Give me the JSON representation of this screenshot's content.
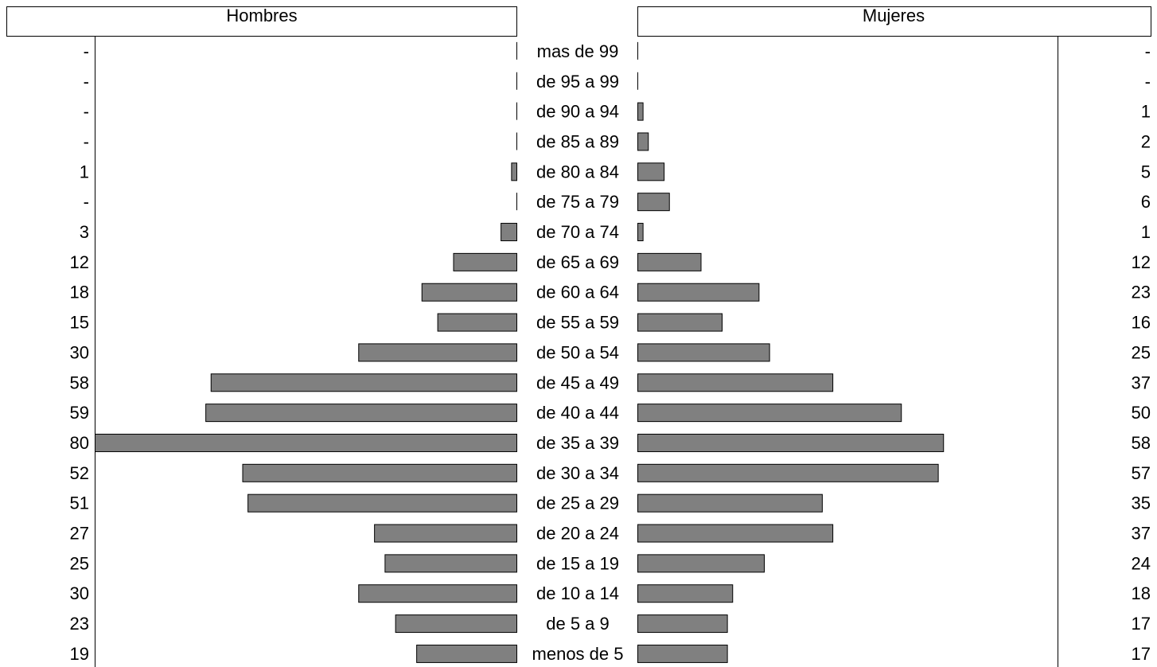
{
  "headers": {
    "left": "Hombres",
    "right": "Mujeres"
  },
  "colors": {
    "bar_fill": "#808080",
    "bar_stroke": "#000000",
    "line": "#000000",
    "background": "#ffffff"
  },
  "chart_data": {
    "type": "bar",
    "orientation": "horizontal-population-pyramid",
    "categories": [
      "mas de 99",
      "de 95 a 99",
      "de 90 a 94",
      "de 85 a 89",
      "de 80 a 84",
      "de 75 a 79",
      "de 70 a 74",
      "de 65 a 69",
      "de 60 a 64",
      "de 55 a 59",
      "de 50 a 54",
      "de 45 a 49",
      "de 40 a 44",
      "de 35 a 39",
      "de 30 a 34",
      "de 25 a 29",
      "de 20 a 24",
      "de 15 a 19",
      "de 10 a 14",
      "de 5 a 9",
      "menos de 5"
    ],
    "series": [
      {
        "name": "Hombres",
        "values": [
          0,
          0,
          0,
          0,
          1,
          0,
          3,
          12,
          18,
          15,
          30,
          58,
          59,
          80,
          52,
          51,
          27,
          25,
          30,
          23,
          19
        ],
        "labels": [
          "-",
          "-",
          "-",
          "-",
          "1",
          "-",
          "3",
          "12",
          "18",
          "15",
          "30",
          "58",
          "59",
          "80",
          "52",
          "51",
          "27",
          "25",
          "30",
          "23",
          "19"
        ]
      },
      {
        "name": "Mujeres",
        "values": [
          0,
          0,
          1,
          2,
          5,
          6,
          1,
          12,
          23,
          16,
          25,
          37,
          50,
          58,
          57,
          35,
          37,
          24,
          18,
          17,
          17
        ],
        "labels": [
          "-",
          "-",
          "1",
          "2",
          "5",
          "6",
          "1",
          "12",
          "23",
          "16",
          "25",
          "37",
          "50",
          "58",
          "57",
          "35",
          "37",
          "24",
          "18",
          "17",
          "17"
        ]
      }
    ],
    "xlim": [
      0,
      80
    ],
    "grid": false,
    "legend": "none"
  }
}
